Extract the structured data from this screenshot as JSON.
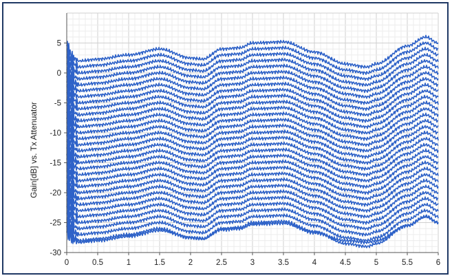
{
  "chart_data": {
    "type": "line",
    "title": "",
    "xlabel": "",
    "ylabel": "Gain[dB] vs. Tx Attenuator",
    "xlim": [
      0,
      6
    ],
    "ylim": [
      -30,
      10
    ],
    "x_ticks": [
      0,
      0.5,
      1,
      1.5,
      2,
      2.5,
      3,
      3.5,
      4,
      4.5,
      5,
      5.5,
      6
    ],
    "x_tick_labels": [
      "0",
      "0.5",
      "1",
      "1.5",
      "2",
      "2.5",
      "3",
      "3.5",
      "4",
      "4.5",
      "5",
      "5.5",
      "6"
    ],
    "y_ticks": [
      -30,
      -25,
      -20,
      -15,
      -10,
      -5,
      0,
      5
    ],
    "y_tick_labels": [
      "-30",
      "-25",
      "-20",
      "-15",
      "-10",
      "-5",
      "0",
      "5"
    ],
    "grid": true,
    "legend": "none",
    "line_color": "#2e62c8",
    "series_note_offset_db": 1,
    "x": [
      0.0,
      0.1,
      0.2,
      0.5,
      1.0,
      1.5,
      2.0,
      2.2,
      2.5,
      2.8,
      3.0,
      3.5,
      4.0,
      4.5,
      4.85,
      5.0,
      5.5,
      5.8,
      6.0
    ],
    "series": [
      {
        "values": [
          4.5,
          2.5,
          2.0,
          2.3,
          3.0,
          4.0,
          2.5,
          2.3,
          4.0,
          4.2,
          5.0,
          5.2,
          3.5,
          1.5,
          1.0,
          1.5,
          4.5,
          6.0,
          5.0
        ]
      },
      {
        "values": [
          3.5,
          1.5,
          1.0,
          1.3,
          2.0,
          3.0,
          1.5,
          1.3,
          3.0,
          3.2,
          4.0,
          4.2,
          2.5,
          0.5,
          0.0,
          0.5,
          3.5,
          5.0,
          4.0
        ]
      },
      {
        "values": [
          2.5,
          0.5,
          0.0,
          0.3,
          1.0,
          2.0,
          0.5,
          0.3,
          2.0,
          2.2,
          3.0,
          3.2,
          1.5,
          -0.5,
          -1.0,
          -0.5,
          2.5,
          4.0,
          3.0
        ]
      },
      {
        "values": [
          1.5,
          -0.5,
          -1.0,
          -0.7,
          0.0,
          1.0,
          -0.5,
          -0.7,
          1.0,
          1.2,
          2.0,
          2.2,
          0.5,
          -1.5,
          -2.0,
          -1.5,
          1.5,
          3.0,
          2.0
        ]
      },
      {
        "values": [
          0.5,
          -1.5,
          -2.0,
          -1.7,
          -1.0,
          0.0,
          -1.5,
          -1.7,
          0.0,
          0.2,
          1.0,
          1.2,
          -0.5,
          -2.5,
          -3.0,
          -2.5,
          0.5,
          2.0,
          1.0
        ]
      },
      {
        "values": [
          -0.5,
          -2.5,
          -3.0,
          -2.7,
          -2.0,
          -1.0,
          -2.5,
          -2.7,
          -1.0,
          -0.8,
          0.0,
          0.2,
          -1.5,
          -3.5,
          -4.0,
          -3.5,
          -0.5,
          1.0,
          0.0
        ]
      },
      {
        "values": [
          -1.5,
          -3.5,
          -4.0,
          -3.7,
          -3.0,
          -2.0,
          -3.5,
          -3.7,
          -2.0,
          -1.8,
          -1.0,
          -0.8,
          -2.5,
          -4.5,
          -5.0,
          -4.5,
          -1.5,
          0.0,
          -1.0
        ]
      },
      {
        "values": [
          -2.5,
          -4.5,
          -5.0,
          -4.7,
          -4.0,
          -3.0,
          -4.5,
          -4.7,
          -3.0,
          -2.8,
          -2.0,
          -1.8,
          -3.5,
          -5.5,
          -6.0,
          -5.5,
          -2.5,
          -1.0,
          -2.0
        ]
      },
      {
        "values": [
          -3.5,
          -5.5,
          -6.0,
          -5.7,
          -5.0,
          -4.0,
          -5.5,
          -5.7,
          -4.0,
          -3.8,
          -3.0,
          -2.8,
          -4.5,
          -6.5,
          -7.0,
          -6.5,
          -3.5,
          -2.0,
          -3.0
        ]
      },
      {
        "values": [
          -4.5,
          -6.5,
          -7.0,
          -6.7,
          -6.0,
          -5.0,
          -6.5,
          -6.7,
          -5.0,
          -4.8,
          -4.0,
          -3.8,
          -5.5,
          -7.5,
          -8.0,
          -7.5,
          -4.5,
          -3.0,
          -4.0
        ]
      },
      {
        "values": [
          -5.5,
          -7.5,
          -8.0,
          -7.7,
          -7.0,
          -6.0,
          -7.5,
          -7.7,
          -6.0,
          -5.8,
          -5.0,
          -4.8,
          -6.5,
          -8.5,
          -9.0,
          -8.5,
          -5.5,
          -4.0,
          -5.0
        ]
      },
      {
        "values": [
          -6.5,
          -8.5,
          -9.0,
          -8.7,
          -8.0,
          -7.0,
          -8.5,
          -8.7,
          -7.0,
          -6.8,
          -6.0,
          -5.8,
          -7.5,
          -9.5,
          -10.0,
          -9.5,
          -6.5,
          -5.0,
          -6.0
        ]
      },
      {
        "values": [
          -7.5,
          -9.5,
          -10.0,
          -9.7,
          -9.0,
          -8.0,
          -9.5,
          -9.7,
          -8.0,
          -7.8,
          -7.0,
          -6.8,
          -8.5,
          -10.5,
          -11.0,
          -10.5,
          -7.5,
          -6.0,
          -7.0
        ]
      },
      {
        "values": [
          -8.5,
          -10.5,
          -11.0,
          -10.7,
          -10.0,
          -9.0,
          -10.5,
          -10.7,
          -9.0,
          -8.8,
          -8.0,
          -7.8,
          -9.5,
          -11.5,
          -12.0,
          -11.5,
          -8.5,
          -7.0,
          -8.0
        ]
      },
      {
        "values": [
          -9.5,
          -11.5,
          -12.0,
          -11.7,
          -11.0,
          -10.0,
          -11.5,
          -11.7,
          -10.0,
          -9.8,
          -9.0,
          -8.8,
          -10.5,
          -12.5,
          -13.0,
          -12.5,
          -9.5,
          -8.0,
          -9.0
        ]
      },
      {
        "values": [
          -10.5,
          -12.5,
          -13.0,
          -12.7,
          -12.0,
          -11.0,
          -12.5,
          -12.7,
          -11.0,
          -10.8,
          -10.0,
          -9.8,
          -11.5,
          -13.5,
          -14.0,
          -13.5,
          -10.5,
          -9.0,
          -10.0
        ]
      },
      {
        "values": [
          -11.5,
          -13.5,
          -14.0,
          -13.7,
          -13.0,
          -12.0,
          -13.5,
          -13.7,
          -12.0,
          -11.8,
          -11.0,
          -10.8,
          -12.5,
          -14.5,
          -15.0,
          -14.5,
          -11.5,
          -10.0,
          -11.0
        ]
      },
      {
        "values": [
          -12.5,
          -14.5,
          -15.0,
          -14.7,
          -14.0,
          -13.0,
          -14.5,
          -14.7,
          -13.0,
          -12.8,
          -12.0,
          -11.8,
          -13.5,
          -15.5,
          -16.0,
          -15.5,
          -12.5,
          -11.0,
          -12.0
        ]
      },
      {
        "values": [
          -13.5,
          -15.5,
          -16.0,
          -15.7,
          -15.0,
          -14.0,
          -15.5,
          -15.7,
          -14.0,
          -13.8,
          -13.0,
          -12.8,
          -14.5,
          -16.5,
          -17.0,
          -16.5,
          -13.5,
          -12.0,
          -13.0
        ]
      },
      {
        "values": [
          -14.5,
          -16.5,
          -17.0,
          -16.7,
          -16.0,
          -15.0,
          -16.5,
          -16.7,
          -15.0,
          -14.8,
          -14.0,
          -13.8,
          -15.5,
          -17.5,
          -18.0,
          -17.5,
          -14.5,
          -13.0,
          -14.0
        ]
      },
      {
        "values": [
          -15.5,
          -17.5,
          -18.0,
          -17.7,
          -17.0,
          -16.0,
          -17.5,
          -17.7,
          -16.0,
          -15.8,
          -15.0,
          -14.8,
          -16.5,
          -18.5,
          -19.0,
          -18.5,
          -15.5,
          -14.0,
          -15.0
        ]
      },
      {
        "values": [
          -16.5,
          -18.5,
          -19.0,
          -18.7,
          -18.0,
          -17.0,
          -18.5,
          -18.7,
          -17.0,
          -16.8,
          -16.0,
          -15.8,
          -17.5,
          -19.5,
          -20.0,
          -19.5,
          -16.5,
          -15.0,
          -16.0
        ]
      },
      {
        "values": [
          -17.5,
          -19.5,
          -20.0,
          -19.7,
          -19.0,
          -18.0,
          -19.5,
          -19.7,
          -18.0,
          -17.8,
          -17.0,
          -16.8,
          -18.5,
          -20.5,
          -21.0,
          -20.5,
          -17.5,
          -16.0,
          -17.0
        ]
      },
      {
        "values": [
          -18.5,
          -20.5,
          -21.0,
          -20.7,
          -20.0,
          -19.0,
          -20.5,
          -20.7,
          -19.0,
          -18.8,
          -18.0,
          -17.8,
          -19.5,
          -21.5,
          -22.0,
          -21.5,
          -18.5,
          -17.0,
          -18.0
        ]
      },
      {
        "values": [
          -19.5,
          -21.5,
          -22.0,
          -21.7,
          -21.0,
          -20.0,
          -21.5,
          -21.7,
          -20.0,
          -19.8,
          -19.0,
          -18.8,
          -20.5,
          -22.5,
          -23.0,
          -22.5,
          -19.5,
          -18.0,
          -19.0
        ]
      },
      {
        "values": [
          -20.5,
          -22.5,
          -23.0,
          -22.7,
          -22.0,
          -21.0,
          -22.5,
          -22.7,
          -21.0,
          -20.8,
          -20.0,
          -19.8,
          -21.5,
          -23.5,
          -24.0,
          -23.5,
          -20.5,
          -19.0,
          -20.0
        ]
      },
      {
        "values": [
          -21.5,
          -23.5,
          -24.0,
          -23.7,
          -23.0,
          -22.0,
          -23.5,
          -23.7,
          -22.0,
          -21.8,
          -21.0,
          -20.8,
          -22.5,
          -24.5,
          -25.0,
          -24.5,
          -21.5,
          -20.0,
          -21.0
        ]
      },
      {
        "values": [
          -22.5,
          -24.5,
          -25.0,
          -24.7,
          -24.0,
          -23.0,
          -24.5,
          -24.7,
          -23.0,
          -22.8,
          -22.0,
          -21.8,
          -23.5,
          -25.5,
          -26.0,
          -25.5,
          -22.5,
          -21.0,
          -22.0
        ]
      },
      {
        "values": [
          -23.5,
          -25.5,
          -26.0,
          -25.7,
          -25.0,
          -24.0,
          -25.5,
          -25.7,
          -24.0,
          -23.8,
          -23.0,
          -22.8,
          -24.5,
          -26.5,
          -27.0,
          -26.5,
          -23.5,
          -22.0,
          -23.0
        ]
      },
      {
        "values": [
          -24.5,
          -26.5,
          -27.0,
          -26.7,
          -26.0,
          -25.0,
          -26.5,
          -26.7,
          -25.0,
          -24.8,
          -24.0,
          -23.8,
          -25.5,
          -27.5,
          -28.0,
          -27.5,
          -24.5,
          -23.0,
          -24.0
        ]
      },
      {
        "values": [
          -25.5,
          -27.5,
          -28.0,
          -27.7,
          -27.0,
          -26.0,
          -27.5,
          -27.7,
          -26.0,
          -25.8,
          -25.0,
          -24.8,
          -26.5,
          -28.5,
          -29.0,
          -28.5,
          -25.5,
          -24.0,
          -25.0
        ]
      },
      {
        "values": [
          -26.5,
          -27.8,
          -28.3,
          -28.0,
          -27.3,
          -26.3,
          -27.5,
          -27.7,
          -26.2,
          -26.0,
          -25.3,
          -25.1,
          -26.7,
          -28.0,
          -28.3,
          -28.0,
          -25.5,
          -24.0,
          -25.0
        ]
      }
    ]
  }
}
